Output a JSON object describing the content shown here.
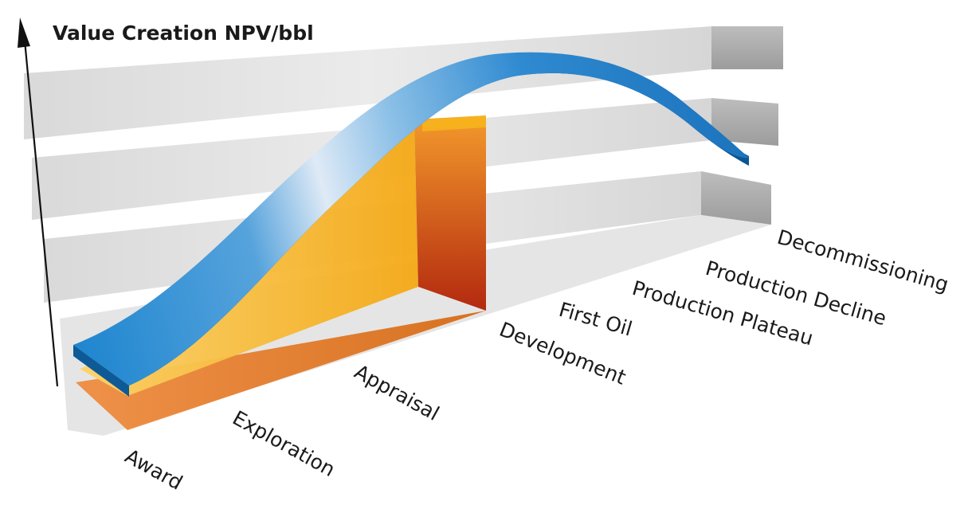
{
  "y_axis": {
    "title": "Value Creation NPV/bbl"
  },
  "stages": [
    {
      "label": "Award"
    },
    {
      "label": "Exploration"
    },
    {
      "label": "Appraisal"
    },
    {
      "label": "Development"
    },
    {
      "label": "First Oil"
    },
    {
      "label": "Production Plateau"
    },
    {
      "label": "Production Decline"
    },
    {
      "label": "Decommissioning"
    }
  ],
  "colors": {
    "curve_top_light": "#e4eef8",
    "curve_top_mid": "#3f95d3",
    "curve_side": "#0c5590",
    "orange_floor": "#e0781f",
    "orange_wall": "#b63418",
    "yellow_fill": "#f7b81a",
    "shelf_light": "#e6e6e6",
    "shelf_end": "#a9a9a9"
  }
}
